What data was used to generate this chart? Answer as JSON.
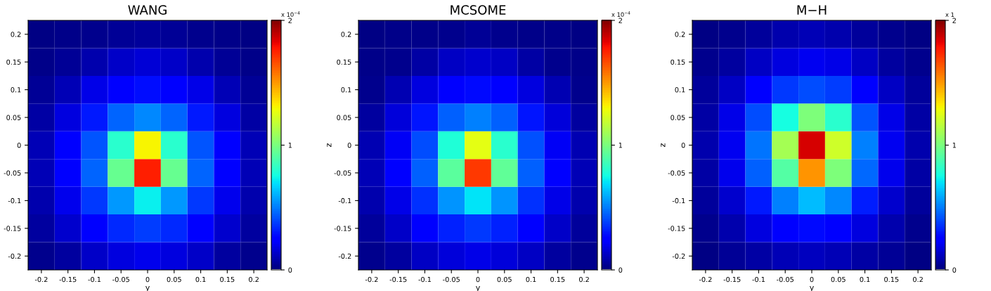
{
  "chart_data": [
    {
      "type": "heatmap",
      "title": "WANG",
      "xlabel": "y",
      "categories": [
        "-0.2",
        "-0.15",
        "-0.1",
        "-0.05",
        "0",
        "0.05",
        "0.1",
        "0.15",
        "0.2"
      ],
      "y_categories": [
        "0.2",
        "0.15",
        "0.1",
        "0.05",
        "0",
        "-0.05",
        "-0.1",
        "-0.15",
        "-0.2"
      ],
      "clim": [
        0,
        2
      ],
      "cticks": [
        0,
        1,
        2
      ],
      "annotations": [
        "x 10$^{−4}$"
      ],
      "cells": [
        [
          0.01,
          0.02,
          0.03,
          0.04,
          0.05,
          0.04,
          0.03,
          0.02,
          0.01
        ],
        [
          0.02,
          0.04,
          0.08,
          0.13,
          0.15,
          0.13,
          0.08,
          0.04,
          0.02
        ],
        [
          0.04,
          0.1,
          0.18,
          0.25,
          0.28,
          0.25,
          0.18,
          0.1,
          0.04
        ],
        [
          0.07,
          0.17,
          0.3,
          0.45,
          0.52,
          0.45,
          0.3,
          0.17,
          0.07
        ],
        [
          0.1,
          0.22,
          0.42,
          0.8,
          1.3,
          0.8,
          0.42,
          0.22,
          0.1
        ],
        [
          0.1,
          0.23,
          0.45,
          0.95,
          1.75,
          0.95,
          0.45,
          0.23,
          0.1
        ],
        [
          0.08,
          0.19,
          0.36,
          0.55,
          0.72,
          0.55,
          0.36,
          0.19,
          0.08
        ],
        [
          0.06,
          0.14,
          0.23,
          0.33,
          0.37,
          0.33,
          0.23,
          0.14,
          0.06
        ],
        [
          0.03,
          0.06,
          0.13,
          0.17,
          0.19,
          0.17,
          0.13,
          0.06,
          0.03
        ]
      ]
    },
    {
      "type": "heatmap",
      "title": "MCSOME",
      "xlabel": "y",
      "ylabel": "z",
      "categories": [
        "-0.2",
        "-0.15",
        "-0.1",
        "-0.05",
        "0",
        "0.05",
        "0.1",
        "0.15",
        "0.2"
      ],
      "y_categories": [
        "0.2",
        "0.15",
        "0.1",
        "0.05",
        "0",
        "-0.05",
        "-0.1",
        "-0.15",
        "-0.2"
      ],
      "clim": [
        0,
        2
      ],
      "cticks": [
        0,
        1,
        2
      ],
      "annotations": [
        "x 10$^{−4}$"
      ],
      "cells": [
        [
          0.01,
          0.02,
          0.02,
          0.03,
          0.04,
          0.03,
          0.02,
          0.02,
          0.01
        ],
        [
          0.02,
          0.03,
          0.07,
          0.12,
          0.14,
          0.12,
          0.07,
          0.03,
          0.02
        ],
        [
          0.03,
          0.09,
          0.17,
          0.24,
          0.27,
          0.24,
          0.17,
          0.09,
          0.03
        ],
        [
          0.06,
          0.16,
          0.29,
          0.44,
          0.5,
          0.44,
          0.29,
          0.16,
          0.06
        ],
        [
          0.09,
          0.21,
          0.4,
          0.78,
          1.25,
          0.8,
          0.41,
          0.21,
          0.09
        ],
        [
          0.1,
          0.22,
          0.44,
          0.92,
          1.7,
          0.93,
          0.44,
          0.22,
          0.1
        ],
        [
          0.08,
          0.18,
          0.35,
          0.54,
          0.7,
          0.54,
          0.35,
          0.18,
          0.08
        ],
        [
          0.05,
          0.13,
          0.22,
          0.32,
          0.36,
          0.32,
          0.22,
          0.13,
          0.05
        ],
        [
          0.03,
          0.06,
          0.12,
          0.16,
          0.18,
          0.16,
          0.12,
          0.06,
          0.03
        ]
      ]
    },
    {
      "type": "heatmap",
      "title": "M−H",
      "xlabel": "y",
      "ylabel": "z",
      "categories": [
        "-0.2",
        "-0.15",
        "-0.1",
        "-0.05",
        "0",
        "0.05",
        "0.1",
        "0.15",
        "0.2"
      ],
      "y_categories": [
        "0.2",
        "0.15",
        "0.1",
        "0.05",
        "0",
        "-0.05",
        "-0.1",
        "-0.15",
        "-0.2"
      ],
      "clim": [
        0,
        2
      ],
      "cticks": [
        0,
        1,
        2
      ],
      "annotations": [
        "x 1"
      ],
      "cells": [
        [
          0.01,
          0.03,
          0.05,
          0.08,
          0.1,
          0.08,
          0.05,
          0.03,
          0.01
        ],
        [
          0.03,
          0.06,
          0.12,
          0.17,
          0.2,
          0.18,
          0.12,
          0.06,
          0.03
        ],
        [
          0.05,
          0.12,
          0.24,
          0.36,
          0.4,
          0.37,
          0.25,
          0.12,
          0.05
        ],
        [
          0.07,
          0.18,
          0.4,
          0.75,
          1.0,
          0.8,
          0.42,
          0.18,
          0.07
        ],
        [
          0.08,
          0.2,
          0.48,
          1.1,
          1.85,
          1.2,
          0.5,
          0.2,
          0.08
        ],
        [
          0.07,
          0.19,
          0.44,
          0.9,
          1.5,
          1.0,
          0.46,
          0.19,
          0.07
        ],
        [
          0.05,
          0.14,
          0.3,
          0.5,
          0.62,
          0.52,
          0.31,
          0.14,
          0.05
        ],
        [
          0.03,
          0.08,
          0.17,
          0.24,
          0.27,
          0.24,
          0.17,
          0.08,
          0.03
        ],
        [
          0.01,
          0.04,
          0.07,
          0.1,
          0.11,
          0.1,
          0.07,
          0.04,
          0.01
        ]
      ]
    }
  ]
}
